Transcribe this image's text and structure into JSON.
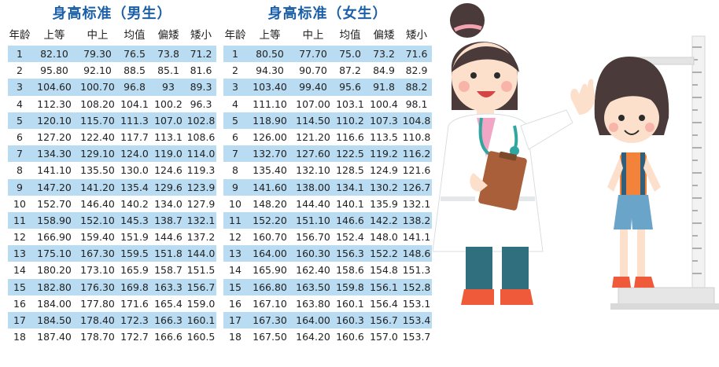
{
  "tables": [
    {
      "title": "身高标准（男生）",
      "headers": [
        "年龄",
        "上等",
        "中上",
        "均值",
        "偏矮",
        "矮小"
      ],
      "rows": [
        [
          "1",
          "82.10",
          "79.30",
          "76.5",
          "73.8",
          "71.2"
        ],
        [
          "2",
          "95.80",
          "92.10",
          "88.5",
          "85.1",
          "81.6"
        ],
        [
          "3",
          "104.60",
          "100.70",
          "96.8",
          "93",
          "89.3"
        ],
        [
          "4",
          "112.30",
          "108.20",
          "104.1",
          "100.2",
          "96.3"
        ],
        [
          "5",
          "120.10",
          "115.70",
          "111.3",
          "107.0",
          "102.8"
        ],
        [
          "6",
          "127.20",
          "122.40",
          "117.7",
          "113.1",
          "108.6"
        ],
        [
          "7",
          "134.30",
          "129.10",
          "124.0",
          "119.0",
          "114.0"
        ],
        [
          "8",
          "141.10",
          "135.50",
          "130.0",
          "124.6",
          "119.3"
        ],
        [
          "9",
          "147.20",
          "141.20",
          "135.4",
          "129.6",
          "123.9"
        ],
        [
          "10",
          "152.70",
          "146.40",
          "140.2",
          "134.0",
          "127.9"
        ],
        [
          "11",
          "158.90",
          "152.10",
          "145.3",
          "138.7",
          "132.1"
        ],
        [
          "12",
          "166.90",
          "159.40",
          "151.9",
          "144.6",
          "137.2"
        ],
        [
          "13",
          "175.10",
          "167.30",
          "159.5",
          "151.8",
          "144.0"
        ],
        [
          "14",
          "180.20",
          "173.10",
          "165.9",
          "158.7",
          "151.5"
        ],
        [
          "15",
          "182.80",
          "176.30",
          "169.8",
          "163.3",
          "156.7"
        ],
        [
          "16",
          "184.00",
          "177.80",
          "171.6",
          "165.4",
          "159.0"
        ],
        [
          "17",
          "184.50",
          "178.40",
          "172.3",
          "166.3",
          "160.1"
        ],
        [
          "18",
          "187.40",
          "178.70",
          "172.7",
          "166.6",
          "160.5"
        ]
      ]
    },
    {
      "title": "身高标准（女生）",
      "headers": [
        "年龄",
        "上等",
        "中上",
        "均值",
        "偏矮",
        "矮小"
      ],
      "rows": [
        [
          "1",
          "80.50",
          "77.70",
          "75.0",
          "73.2",
          "71.6"
        ],
        [
          "2",
          "94.30",
          "90.70",
          "87.2",
          "84.9",
          "82.9"
        ],
        [
          "3",
          "103.40",
          "99.40",
          "95.6",
          "91.8",
          "88.2"
        ],
        [
          "4",
          "111.10",
          "107.00",
          "103.1",
          "100.4",
          "98.1"
        ],
        [
          "5",
          "118.90",
          "114.50",
          "110.2",
          "107.3",
          "104.8"
        ],
        [
          "6",
          "126.00",
          "121.20",
          "116.6",
          "113.5",
          "110.8"
        ],
        [
          "7",
          "132.70",
          "127.60",
          "122.5",
          "119.2",
          "116.2"
        ],
        [
          "8",
          "135.40",
          "132.10",
          "128.5",
          "124.9",
          "121.6"
        ],
        [
          "9",
          "141.60",
          "138.00",
          "134.1",
          "130.2",
          "126.7"
        ],
        [
          "10",
          "148.20",
          "144.40",
          "140.1",
          "135.9",
          "132.1"
        ],
        [
          "11",
          "152.20",
          "151.10",
          "146.6",
          "142.2",
          "138.2"
        ],
        [
          "12",
          "160.70",
          "156.70",
          "152.4",
          "148.0",
          "141.1"
        ],
        [
          "13",
          "164.00",
          "160.30",
          "156.3",
          "152.2",
          "148.6"
        ],
        [
          "14",
          "165.90",
          "162.40",
          "158.6",
          "154.8",
          "151.3"
        ],
        [
          "15",
          "166.80",
          "163.50",
          "159.8",
          "156.1",
          "152.8"
        ],
        [
          "16",
          "167.10",
          "163.80",
          "160.1",
          "156.4",
          "153.1"
        ],
        [
          "17",
          "167.30",
          "164.00",
          "160.3",
          "156.7",
          "153.4"
        ],
        [
          "18",
          "167.50",
          "164.20",
          "160.6",
          "157.0",
          "153.7"
        ]
      ]
    }
  ],
  "illustration": {
    "description_icons": [
      "doctor-icon",
      "child-icon",
      "height-ruler-icon",
      "clipboard-icon",
      "stethoscope-icon"
    ]
  },
  "colors": {
    "title": "#1a5fa8",
    "row_shade": "#b9dcf2",
    "text": "#222222"
  }
}
